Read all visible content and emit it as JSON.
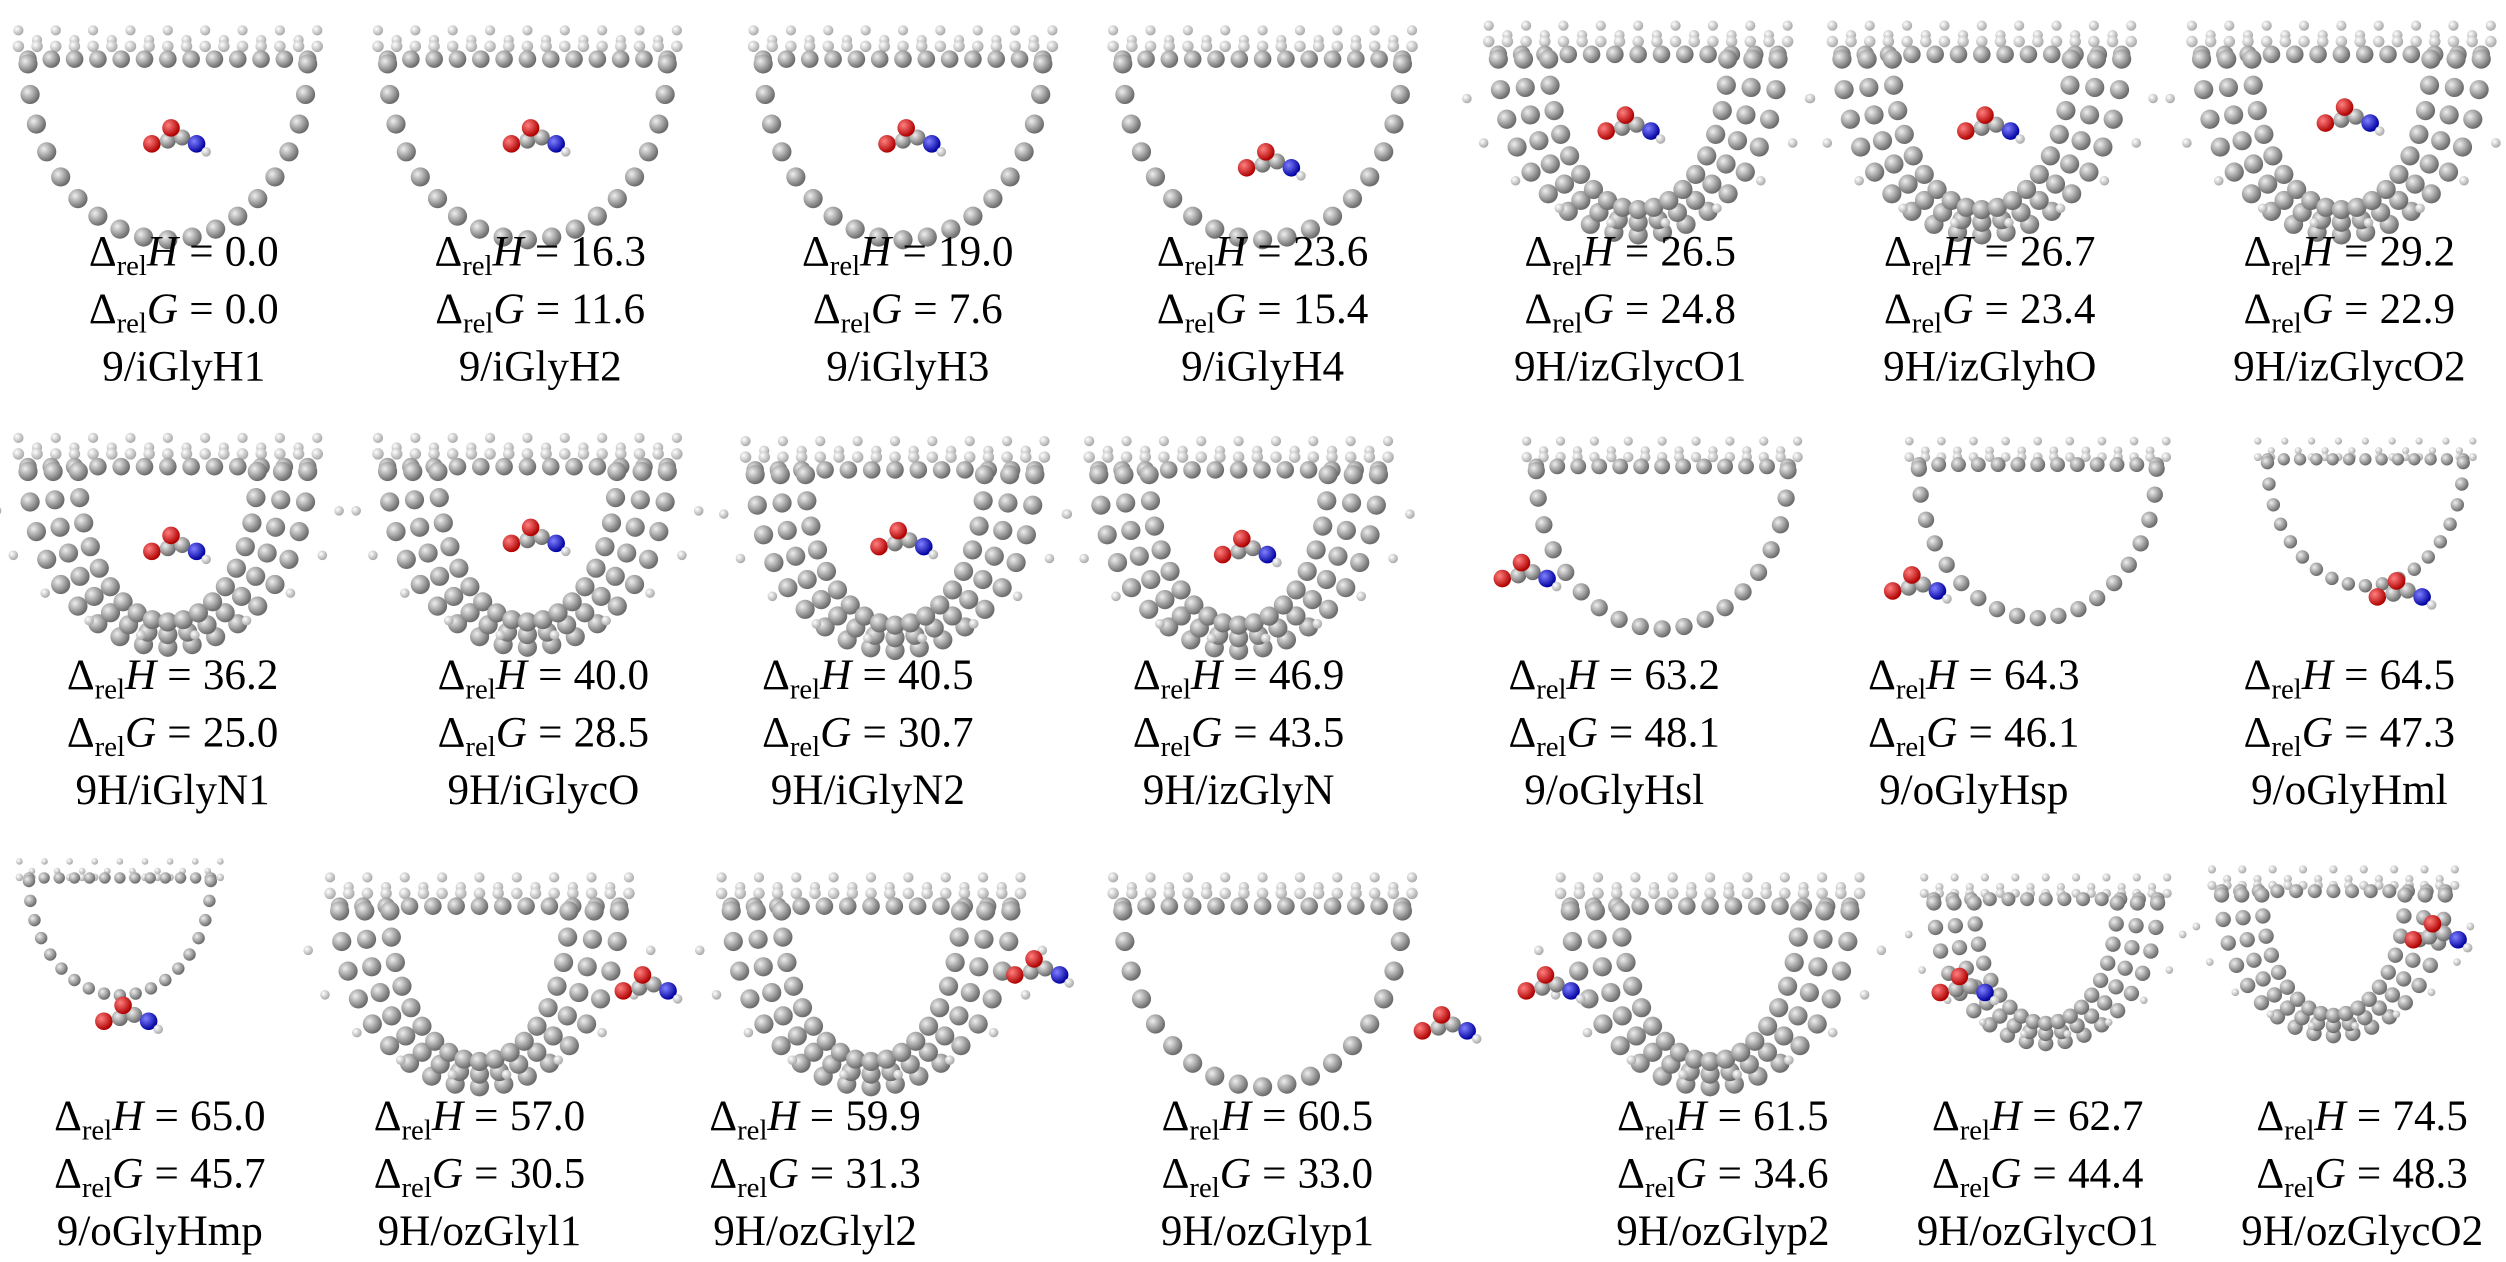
{
  "notation": {
    "delta": "Δ",
    "sub": "rel",
    "enthalpy": "H",
    "gibbs": "G",
    "equals": "="
  },
  "structures": [
    {
      "h": "0.0",
      "g": "0.0",
      "label": "9/iGlyH1"
    },
    {
      "h": "16.3",
      "g": "11.6",
      "label": "9/iGlyH2"
    },
    {
      "h": "19.0",
      "g": "7.6",
      "label": "9/iGlyH3"
    },
    {
      "h": "23.6",
      "g": "15.4",
      "label": "9/iGlyH4"
    },
    {
      "h": "26.5",
      "g": "24.8",
      "label": "9H/izGlycO1"
    },
    {
      "h": "26.7",
      "g": "23.4",
      "label": "9H/izGlyhO"
    },
    {
      "h": "29.2",
      "g": "22.9",
      "label": "9H/izGlycO2"
    },
    {
      "h": "36.2",
      "g": "25.0",
      "label": "9H/iGlyN1"
    },
    {
      "h": "40.0",
      "g": "28.5",
      "label": "9H/iGlycO"
    },
    {
      "h": "40.5",
      "g": "30.7",
      "label": "9H/iGlyN2"
    },
    {
      "h": "46.9",
      "g": "43.5",
      "label": "9H/izGlyN"
    },
    {
      "h": "63.2",
      "g": "48.1",
      "label": "9/oGlyHsl"
    },
    {
      "h": "64.3",
      "g": "46.1",
      "label": "9/oGlyHsp"
    },
    {
      "h": "64.5",
      "g": "47.3",
      "label": "9/oGlyHml"
    },
    {
      "h": "65.0",
      "g": "45.7",
      "label": "9/oGlyHmp"
    },
    {
      "h": "57.0",
      "g": "30.5",
      "label": "9H/ozGlyl1"
    },
    {
      "h": "59.9",
      "g": "31.3",
      "label": "9H/ozGlyl2"
    },
    {
      "h": "60.5",
      "g": "33.0",
      "label": "9H/ozGlyp1"
    },
    {
      "h": "61.5",
      "g": "34.6",
      "label": "9H/ozGlyp2"
    },
    {
      "h": "62.7",
      "g": "44.4",
      "label": "9H/ozGlycO1"
    },
    {
      "h": "74.5",
      "g": "48.3",
      "label": "9H/ozGlycO2"
    }
  ]
}
